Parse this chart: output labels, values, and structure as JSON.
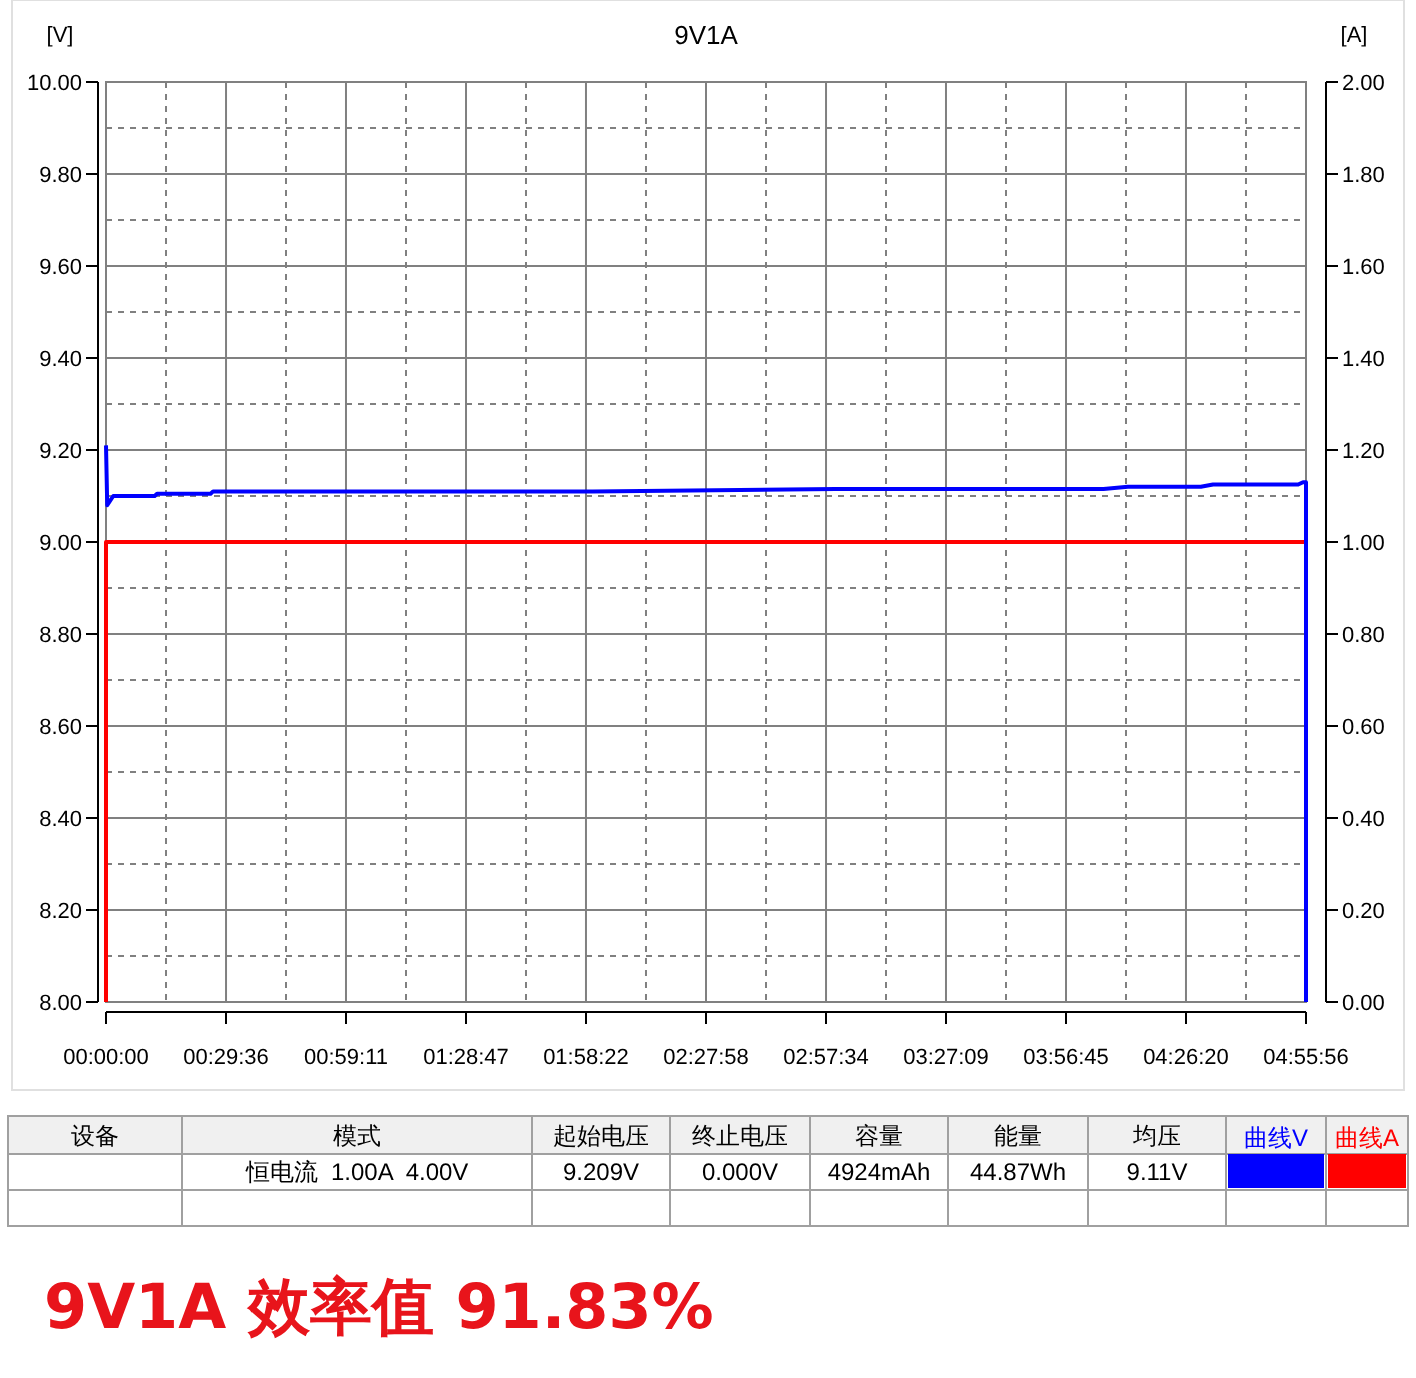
{
  "chart_data": {
    "type": "line",
    "title": "9V1A",
    "ylabel": "[V]",
    "y2label": "[A]",
    "xlim": [
      0,
      4.93222
    ],
    "ylim": [
      8,
      10
    ],
    "y2lim": [
      0,
      2
    ],
    "xticks": [
      {
        "value": 0,
        "label": "00:00:00"
      },
      {
        "value": 0.49333,
        "label": "00:29:36"
      },
      {
        "value": 0.98639,
        "label": "00:59:11"
      },
      {
        "value": 1.47972,
        "label": "01:28:47"
      },
      {
        "value": 1.97278,
        "label": "01:58:22"
      },
      {
        "value": 2.46611,
        "label": "02:27:58"
      },
      {
        "value": 2.95944,
        "label": "02:57:34"
      },
      {
        "value": 3.4525,
        "label": "03:27:09"
      },
      {
        "value": 3.94583,
        "label": "03:56:45"
      },
      {
        "value": 4.43889,
        "label": "04:26:20"
      },
      {
        "value": 4.93222,
        "label": "04:55:56"
      }
    ],
    "yticks": [
      {
        "value": 8,
        "label": "8.00"
      },
      {
        "value": 8.2,
        "label": "8.20"
      },
      {
        "value": 8.4,
        "label": "8.40"
      },
      {
        "value": 8.6,
        "label": "8.60"
      },
      {
        "value": 8.8,
        "label": "8.80"
      },
      {
        "value": 9,
        "label": "9.00"
      },
      {
        "value": 9.2,
        "label": "9.20"
      },
      {
        "value": 9.4,
        "label": "9.40"
      },
      {
        "value": 9.6,
        "label": "9.60"
      },
      {
        "value": 9.8,
        "label": "9.80"
      },
      {
        "value": 10,
        "label": "10.00"
      }
    ],
    "y2ticks": [
      {
        "value": 0,
        "label": "0.00"
      },
      {
        "value": 0.2,
        "label": "0.20"
      },
      {
        "value": 0.4,
        "label": "0.40"
      },
      {
        "value": 0.6,
        "label": "0.60"
      },
      {
        "value": 0.8,
        "label": "0.80"
      },
      {
        "value": 1,
        "label": "1.00"
      },
      {
        "value": 1.2,
        "label": "1.20"
      },
      {
        "value": 1.4,
        "label": "1.40"
      },
      {
        "value": 1.6,
        "label": "1.60"
      },
      {
        "value": 1.8,
        "label": "1.80"
      },
      {
        "value": 2,
        "label": "2.00"
      }
    ],
    "grid": true,
    "legend": "bottom right",
    "series": [
      {
        "name": "曲线V",
        "color": "#0000ff",
        "x": [
          0,
          0.005,
          0.03,
          0.2,
          0.21,
          0.43,
          0.44,
          2.0,
          3.0,
          4.1,
          4.2,
          4.5,
          4.55,
          4.9,
          4.92,
          4.93222,
          4.93222
        ],
        "values": [
          9.21,
          9.08,
          9.1,
          9.1,
          9.105,
          9.105,
          9.11,
          9.11,
          9.115,
          9.115,
          9.12,
          9.12,
          9.125,
          9.125,
          9.13,
          9.13,
          8.0
        ]
      },
      {
        "name": "曲线A",
        "color": "#ff0000",
        "axis": "y2",
        "x": [
          0,
          0,
          4.93222,
          4.93222
        ],
        "values": [
          0,
          1,
          1,
          0
        ]
      }
    ],
    "annotations": [
      "设备",
      "模式",
      "起始电压",
      "终止电压",
      "容量",
      "能量",
      "均压",
      "恒电流  1.00A  4.00V",
      "9.209V",
      "0.000V",
      "4924mAh",
      "44.87Wh",
      "9.11V",
      "9V1A 效率值 91.83%"
    ]
  }
}
